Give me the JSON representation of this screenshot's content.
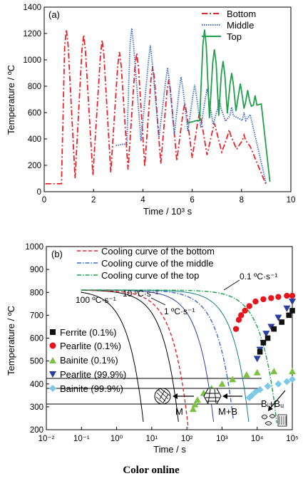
{
  "caption": "Color online",
  "colors": {
    "bottom": "#e8242b",
    "middle": "#3a6cc9",
    "top": "#1fa04a",
    "ferrite": "#111111",
    "pearlite": "#e8141c",
    "bainite": "#7cc242",
    "pearlite999": "#2b3fa0",
    "bainite999": "#7dc8e6"
  },
  "chart_data": [
    {
      "type": "line",
      "panel_label": "(a)",
      "xlabel": "Time / 10³ s",
      "ylabel": "Temperature / ºC",
      "xlim": [
        0,
        10
      ],
      "ylim": [
        0,
        1400
      ],
      "xticks": [
        "0",
        "2",
        "4",
        "6",
        "8",
        "10"
      ],
      "yticks": [
        "0",
        "200",
        "400",
        "600",
        "800",
        "1000",
        "1200",
        "1400"
      ],
      "legend": [
        "Bottom",
        "Middle",
        "Top"
      ],
      "series": [
        {
          "name": "Bottom",
          "peaks": [
            [
              0.9,
              1230
            ],
            [
              1.6,
              1190
            ],
            [
              2.35,
              1150
            ],
            [
              3.05,
              1060
            ],
            [
              3.75,
              1050
            ],
            [
              4.4,
              950
            ],
            [
              5.05,
              850
            ],
            [
              5.7,
              670
            ],
            [
              6.3,
              600
            ],
            [
              6.9,
              520
            ],
            [
              7.5,
              470
            ],
            [
              8.1,
              430
            ]
          ],
          "end": [
            9.0,
            50
          ]
        },
        {
          "name": "Middle",
          "peaks": [
            [
              3.55,
              1240
            ],
            [
              4.3,
              1110
            ],
            [
              5.0,
              940
            ],
            [
              5.55,
              870
            ],
            [
              6.1,
              810
            ],
            [
              6.6,
              780
            ],
            [
              7.1,
              700
            ],
            [
              7.6,
              640
            ],
            [
              8.1,
              600
            ]
          ],
          "end": [
            9.0,
            60
          ]
        },
        {
          "name": "Top",
          "peaks": [
            [
              6.5,
              1230
            ],
            [
              6.9,
              1080
            ],
            [
              7.25,
              990
            ],
            [
              7.6,
              900
            ],
            [
              7.95,
              820
            ],
            [
              8.25,
              770
            ],
            [
              8.55,
              730
            ]
          ],
          "end": [
            9.15,
            75
          ]
        }
      ]
    },
    {
      "type": "scatter",
      "panel_label": "(b)",
      "xlabel": "Time / s",
      "ylabel": "Temperature / ºC",
      "xscale": "log",
      "xlim": [
        0.01,
        100000
      ],
      "ylim": [
        200,
        1000
      ],
      "xticks": [
        "10⁻²",
        "10⁻¹",
        "10⁰",
        "10¹",
        "10²",
        "10³",
        "10⁴",
        "10⁵"
      ],
      "yticks": [
        "200",
        "300",
        "400",
        "500",
        "600",
        "700",
        "800",
        "900",
        "1000"
      ],
      "lines": [
        "Cooling curve of the bottom",
        "Cooling curve of the middle",
        "Cooling curve of the top"
      ],
      "markers": [
        "Ferrite (0.1%)",
        "Pearlite (0.1%)",
        "Bainite (0.1%)",
        "Pearlite (99.9%)",
        "Bainite (99.9%)"
      ],
      "rate_labels": [
        "100 ºC·s⁻¹",
        "10 ºC·s⁻¹",
        "1 ºC·s⁻¹",
        "0.1 ºC·s⁻¹"
      ],
      "phase_labels": [
        "M",
        "M+B",
        "Bₗ+Bᵤ"
      ],
      "ms_temperature": 240,
      "ferrite_0_1": [
        [
          12000,
          540
        ],
        [
          15000,
          580
        ],
        [
          20000,
          600
        ],
        [
          30000,
          640
        ],
        [
          50000,
          670
        ],
        [
          80000,
          700
        ],
        [
          100000,
          720
        ]
      ],
      "pearlite_0_1": [
        [
          2500,
          640
        ],
        [
          3000,
          680
        ],
        [
          3500,
          700
        ],
        [
          4500,
          720
        ],
        [
          6000,
          740
        ],
        [
          9000,
          760
        ],
        [
          15000,
          770
        ],
        [
          25000,
          775
        ],
        [
          40000,
          780
        ],
        [
          70000,
          785
        ],
        [
          100000,
          785
        ]
      ],
      "bainite_0_1": [
        [
          150,
          290
        ],
        [
          170,
          310
        ],
        [
          200,
          330
        ],
        [
          300,
          360
        ],
        [
          500,
          380
        ],
        [
          1000,
          400
        ],
        [
          2000,
          420
        ],
        [
          5000,
          440
        ],
        [
          10000,
          450
        ],
        [
          30000,
          455
        ],
        [
          100000,
          455
        ]
      ],
      "pearlite_99_9": [
        [
          10000,
          510
        ],
        [
          12000,
          550
        ],
        [
          15000,
          580
        ],
        [
          18000,
          620
        ],
        [
          25000,
          650
        ],
        [
          40000,
          690
        ],
        [
          70000,
          730
        ],
        [
          100000,
          760
        ]
      ],
      "bainite_99_9": [
        [
          6000,
          340
        ],
        [
          7000,
          350
        ],
        [
          9000,
          365
        ],
        [
          12000,
          375
        ],
        [
          20000,
          390
        ],
        [
          40000,
          400
        ],
        [
          70000,
          410
        ],
        [
          100000,
          420
        ]
      ]
    }
  ]
}
